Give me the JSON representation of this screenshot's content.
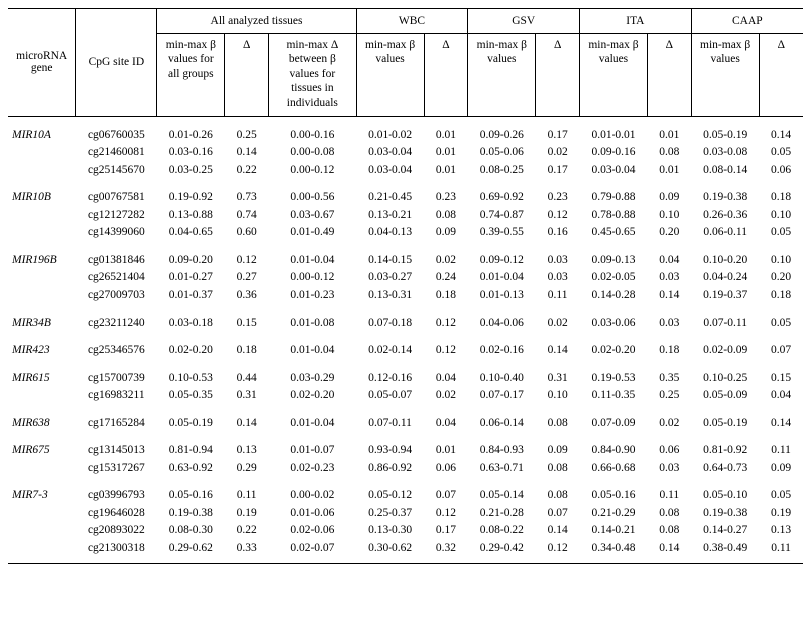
{
  "header": {
    "gene": "microRNA gene",
    "cpg": "CpG site ID",
    "groups": {
      "all": "All analyzed tissues",
      "wbc": "WBC",
      "gsv": "GSV",
      "ita": "ITA",
      "caap": "CAAP"
    },
    "sub": {
      "all_minmax": "min-max β values for all groups",
      "all_delta": "Δ",
      "all_tdelta": "min-max Δ between β values for tissues in individuals",
      "minmax": "min-max β values",
      "delta": "Δ"
    }
  },
  "genes": [
    {
      "name": "MIR10A",
      "rows": [
        {
          "cpg": "cg06760035",
          "all_mm": "0.01-0.26",
          "all_d": "0.25",
          "all_td": "0.00-0.16",
          "wbc_mm": "0.01-0.02",
          "wbc_d": "0.01",
          "gsv_mm": "0.09-0.26",
          "gsv_d": "0.17",
          "ita_mm": "0.01-0.01",
          "ita_d": "0.01",
          "caap_mm": "0.05-0.19",
          "caap_d": "0.14"
        },
        {
          "cpg": "cg21460081",
          "all_mm": "0.03-0.16",
          "all_d": "0.14",
          "all_td": "0.00-0.08",
          "wbc_mm": "0.03-0.04",
          "wbc_d": "0.01",
          "gsv_mm": "0.05-0.06",
          "gsv_d": "0.02",
          "ita_mm": "0.09-0.16",
          "ita_d": "0.08",
          "caap_mm": "0.03-0.08",
          "caap_d": "0.05"
        },
        {
          "cpg": "cg25145670",
          "all_mm": "0.03-0.25",
          "all_d": "0.22",
          "all_td": "0.00-0.12",
          "wbc_mm": "0.03-0.04",
          "wbc_d": "0.01",
          "gsv_mm": "0.08-0.25",
          "gsv_d": "0.17",
          "ita_mm": "0.03-0.04",
          "ita_d": "0.01",
          "caap_mm": "0.08-0.14",
          "caap_d": "0.06"
        }
      ]
    },
    {
      "name": "MIR10B",
      "rows": [
        {
          "cpg": "cg00767581",
          "all_mm": "0.19-0.92",
          "all_d": "0.73",
          "all_td": "0.00-0.56",
          "wbc_mm": "0.21-0.45",
          "wbc_d": "0.23",
          "gsv_mm": "0.69-0.92",
          "gsv_d": "0.23",
          "ita_mm": "0.79-0.88",
          "ita_d": "0.09",
          "caap_mm": "0.19-0.38",
          "caap_d": "0.18"
        },
        {
          "cpg": "cg12127282",
          "all_mm": "0.13-0.88",
          "all_d": "0.74",
          "all_td": "0.03-0.67",
          "wbc_mm": "0.13-0.21",
          "wbc_d": "0.08",
          "gsv_mm": "0.74-0.87",
          "gsv_d": "0.12",
          "ita_mm": "0.78-0.88",
          "ita_d": "0.10",
          "caap_mm": "0.26-0.36",
          "caap_d": "0.10"
        },
        {
          "cpg": "cg14399060",
          "all_mm": "0.04-0.65",
          "all_d": "0.60",
          "all_td": "0.01-0.49",
          "wbc_mm": "0.04-0.13",
          "wbc_d": "0.09",
          "gsv_mm": "0.39-0.55",
          "gsv_d": "0.16",
          "ita_mm": "0.45-0.65",
          "ita_d": "0.20",
          "caap_mm": "0.06-0.11",
          "caap_d": "0.05"
        }
      ]
    },
    {
      "name": "MIR196B",
      "rows": [
        {
          "cpg": "cg01381846",
          "all_mm": "0.09-0.20",
          "all_d": "0.12",
          "all_td": "0.01-0.04",
          "wbc_mm": "0.14-0.15",
          "wbc_d": "0.02",
          "gsv_mm": "0.09-0.12",
          "gsv_d": "0.03",
          "ita_mm": "0.09-0.13",
          "ita_d": "0.04",
          "caap_mm": "0.10-0.20",
          "caap_d": "0.10"
        },
        {
          "cpg": "cg26521404",
          "all_mm": "0.01-0.27",
          "all_d": "0.27",
          "all_td": "0.00-0.12",
          "wbc_mm": "0.03-0.27",
          "wbc_d": "0.24",
          "gsv_mm": "0.01-0.04",
          "gsv_d": "0.03",
          "ita_mm": "0.02-0.05",
          "ita_d": "0.03",
          "caap_mm": "0.04-0.24",
          "caap_d": "0.20"
        },
        {
          "cpg": "cg27009703",
          "all_mm": "0.01-0.37",
          "all_d": "0.36",
          "all_td": "0.01-0.23",
          "wbc_mm": "0.13-0.31",
          "wbc_d": "0.18",
          "gsv_mm": "0.01-0.13",
          "gsv_d": "0.11",
          "ita_mm": "0.14-0.28",
          "ita_d": "0.14",
          "caap_mm": "0.19-0.37",
          "caap_d": "0.18"
        }
      ]
    },
    {
      "name": "MIR34B",
      "rows": [
        {
          "cpg": "cg23211240",
          "all_mm": "0.03-0.18",
          "all_d": "0.15",
          "all_td": "0.01-0.08",
          "wbc_mm": "0.07-0.18",
          "wbc_d": "0.12",
          "gsv_mm": "0.04-0.06",
          "gsv_d": "0.02",
          "ita_mm": "0.03-0.06",
          "ita_d": "0.03",
          "caap_mm": "0.07-0.11",
          "caap_d": "0.05"
        }
      ]
    },
    {
      "name": "MIR423",
      "rows": [
        {
          "cpg": "cg25346576",
          "all_mm": "0.02-0.20",
          "all_d": "0.18",
          "all_td": "0.01-0.04",
          "wbc_mm": "0.02-0.14",
          "wbc_d": "0.12",
          "gsv_mm": "0.02-0.16",
          "gsv_d": "0.14",
          "ita_mm": "0.02-0.20",
          "ita_d": "0.18",
          "caap_mm": "0.02-0.09",
          "caap_d": "0.07"
        }
      ]
    },
    {
      "name": "MIR615",
      "rows": [
        {
          "cpg": "cg15700739",
          "all_mm": "0.10-0.53",
          "all_d": "0.44",
          "all_td": "0.03-0.29",
          "wbc_mm": "0.12-0.16",
          "wbc_d": "0.04",
          "gsv_mm": "0.10-0.40",
          "gsv_d": "0.31",
          "ita_mm": "0.19-0.53",
          "ita_d": "0.35",
          "caap_mm": "0.10-0.25",
          "caap_d": "0.15"
        },
        {
          "cpg": "cg16983211",
          "all_mm": "0.05-0.35",
          "all_d": "0.31",
          "all_td": "0.02-0.20",
          "wbc_mm": "0.05-0.07",
          "wbc_d": "0.02",
          "gsv_mm": "0.07-0.17",
          "gsv_d": "0.10",
          "ita_mm": "0.11-0.35",
          "ita_d": "0.25",
          "caap_mm": "0.05-0.09",
          "caap_d": "0.04"
        }
      ]
    },
    {
      "name": "MIR638",
      "rows": [
        {
          "cpg": "cg17165284",
          "all_mm": "0.05-0.19",
          "all_d": "0.14",
          "all_td": "0.01-0.04",
          "wbc_mm": "0.07-0.11",
          "wbc_d": "0.04",
          "gsv_mm": "0.06-0.14",
          "gsv_d": "0.08",
          "ita_mm": "0.07-0.09",
          "ita_d": "0.02",
          "caap_mm": "0.05-0.19",
          "caap_d": "0.14"
        }
      ]
    },
    {
      "name": "MIR675",
      "rows": [
        {
          "cpg": "cg13145013",
          "all_mm": "0.81-0.94",
          "all_d": "0.13",
          "all_td": "0.01-0.07",
          "wbc_mm": "0.93-0.94",
          "wbc_d": "0.01",
          "gsv_mm": "0.84-0.93",
          "gsv_d": "0.09",
          "ita_mm": "0.84-0.90",
          "ita_d": "0.06",
          "caap_mm": "0.81-0.92",
          "caap_d": "0.11"
        },
        {
          "cpg": "cg15317267",
          "all_mm": "0.63-0.92",
          "all_d": "0.29",
          "all_td": "0.02-0.23",
          "wbc_mm": "0.86-0.92",
          "wbc_d": "0.06",
          "gsv_mm": "0.63-0.71",
          "gsv_d": "0.08",
          "ita_mm": "0.66-0.68",
          "ita_d": "0.03",
          "caap_mm": "0.64-0.73",
          "caap_d": "0.09"
        }
      ]
    },
    {
      "name": "MIR7-3",
      "rows": [
        {
          "cpg": "cg03996793",
          "all_mm": "0.05-0.16",
          "all_d": "0.11",
          "all_td": "0.00-0.02",
          "wbc_mm": "0.05-0.12",
          "wbc_d": "0.07",
          "gsv_mm": "0.05-0.14",
          "gsv_d": "0.08",
          "ita_mm": "0.05-0.16",
          "ita_d": "0.11",
          "caap_mm": "0.05-0.10",
          "caap_d": "0.05"
        },
        {
          "cpg": "cg19646028",
          "all_mm": "0.19-0.38",
          "all_d": "0.19",
          "all_td": "0.01-0.06",
          "wbc_mm": "0.25-0.37",
          "wbc_d": "0.12",
          "gsv_mm": "0.21-0.28",
          "gsv_d": "0.07",
          "ita_mm": "0.21-0.29",
          "ita_d": "0.08",
          "caap_mm": "0.19-0.38",
          "caap_d": "0.19"
        },
        {
          "cpg": "cg20893022",
          "all_mm": "0.08-0.30",
          "all_d": "0.22",
          "all_td": "0.02-0.06",
          "wbc_mm": "0.13-0.30",
          "wbc_d": "0.17",
          "gsv_mm": "0.08-0.22",
          "gsv_d": "0.14",
          "ita_mm": "0.14-0.21",
          "ita_d": "0.08",
          "caap_mm": "0.14-0.27",
          "caap_d": "0.13"
        },
        {
          "cpg": "cg21300318",
          "all_mm": "0.29-0.62",
          "all_d": "0.33",
          "all_td": "0.02-0.07",
          "wbc_mm": "0.30-0.62",
          "wbc_d": "0.32",
          "gsv_mm": "0.29-0.42",
          "gsv_d": "0.12",
          "ita_mm": "0.34-0.48",
          "ita_d": "0.14",
          "caap_mm": "0.38-0.49",
          "caap_d": "0.11"
        }
      ]
    }
  ]
}
